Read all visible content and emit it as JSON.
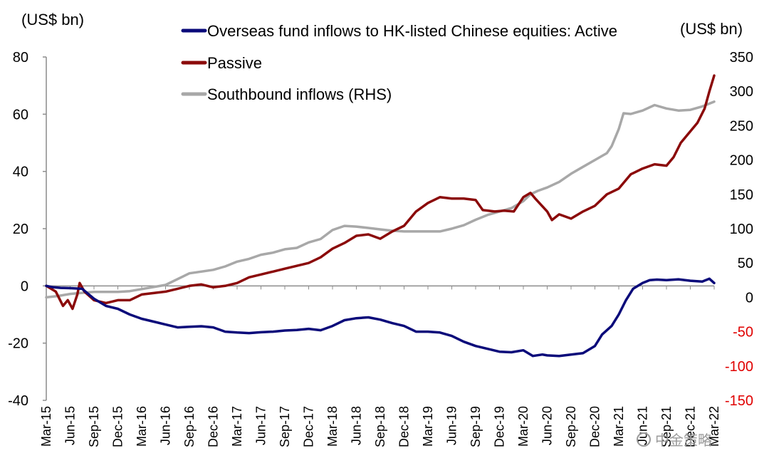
{
  "chart_data": {
    "type": "line",
    "left_unit": "(US$ bn)",
    "right_unit": "(US$ bn)",
    "left_axis": {
      "ylim": [
        -40,
        80
      ],
      "ticks": [
        -40,
        -20,
        0,
        20,
        40,
        60,
        80
      ]
    },
    "right_axis": {
      "ylim": [
        -150,
        350
      ],
      "ticks": [
        -150,
        -100,
        -50,
        0,
        50,
        100,
        150,
        200,
        250,
        300,
        350
      ]
    },
    "x_ticks": [
      "Mar-15",
      "Jun-15",
      "Sep-15",
      "Dec-15",
      "Mar-16",
      "Jun-16",
      "Sep-16",
      "Dec-16",
      "Mar-17",
      "Jun-17",
      "Sep-17",
      "Dec-17",
      "Mar-18",
      "Jun-18",
      "Sep-18",
      "Dec-18",
      "Mar-19",
      "Jun-19",
      "Sep-19",
      "Dec-19",
      "Mar-20",
      "Jun-20",
      "Sep-20",
      "Dec-20",
      "Mar-21",
      "Jun-21",
      "Sep-21",
      "Dec-21",
      "Mar-22"
    ],
    "x_range": [
      0,
      28
    ],
    "series": [
      {
        "name": "Overseas fund inflows to HK-listed Chinese equities: Active",
        "axis": "left",
        "color": "#0a0a7a",
        "points": [
          [
            0,
            0
          ],
          [
            0.3,
            -0.5
          ],
          [
            0.6,
            -0.7
          ],
          [
            1,
            -0.8
          ],
          [
            1.5,
            -1
          ],
          [
            2,
            -4.5
          ],
          [
            2.5,
            -7
          ],
          [
            3,
            -8
          ],
          [
            3.5,
            -10
          ],
          [
            4,
            -11.5
          ],
          [
            4.5,
            -12.5
          ],
          [
            5,
            -13.5
          ],
          [
            5.5,
            -14.5
          ],
          [
            6,
            -14.3
          ],
          [
            6.5,
            -14.1
          ],
          [
            7,
            -14.5
          ],
          [
            7.5,
            -16
          ],
          [
            8,
            -16.3
          ],
          [
            8.5,
            -16.5
          ],
          [
            9,
            -16.2
          ],
          [
            9.5,
            -16
          ],
          [
            10,
            -15.6
          ],
          [
            10.5,
            -15.4
          ],
          [
            11,
            -15
          ],
          [
            11.5,
            -15.5
          ],
          [
            12,
            -14
          ],
          [
            12.5,
            -12
          ],
          [
            13,
            -11.3
          ],
          [
            13.5,
            -11
          ],
          [
            14,
            -11.8
          ],
          [
            14.5,
            -13
          ],
          [
            15,
            -14
          ],
          [
            15.5,
            -16
          ],
          [
            16,
            -16
          ],
          [
            16.5,
            -16.3
          ],
          [
            17,
            -17.5
          ],
          [
            17.5,
            -19.5
          ],
          [
            18,
            -21
          ],
          [
            18.5,
            -22
          ],
          [
            19,
            -23
          ],
          [
            19.5,
            -23.2
          ],
          [
            20,
            -22.5
          ],
          [
            20.4,
            -24.5
          ],
          [
            20.8,
            -24
          ],
          [
            21,
            -24.3
          ],
          [
            21.5,
            -24.5
          ],
          [
            22,
            -24
          ],
          [
            22.5,
            -23.5
          ],
          [
            23,
            -21
          ],
          [
            23.3,
            -17
          ],
          [
            23.7,
            -14
          ],
          [
            24,
            -10
          ],
          [
            24.3,
            -5
          ],
          [
            24.6,
            -1
          ],
          [
            25,
            1
          ],
          [
            25.3,
            2
          ],
          [
            25.6,
            2.2
          ],
          [
            26,
            2
          ],
          [
            26.5,
            2.3
          ],
          [
            27,
            1.8
          ],
          [
            27.5,
            1.5
          ],
          [
            27.8,
            2.5
          ],
          [
            28,
            1
          ]
        ]
      },
      {
        "name": "Passive",
        "axis": "left",
        "color": "#8b0a0a",
        "points": [
          [
            0,
            0
          ],
          [
            0.4,
            -2
          ],
          [
            0.7,
            -7
          ],
          [
            0.9,
            -5
          ],
          [
            1.1,
            -8
          ],
          [
            1.3,
            -3
          ],
          [
            1.4,
            1
          ],
          [
            1.6,
            -2
          ],
          [
            2,
            -5
          ],
          [
            2.5,
            -6
          ],
          [
            3,
            -5
          ],
          [
            3.5,
            -5
          ],
          [
            4,
            -3
          ],
          [
            4.5,
            -2.5
          ],
          [
            5,
            -2
          ],
          [
            5.5,
            -1
          ],
          [
            6,
            0
          ],
          [
            6.5,
            0.5
          ],
          [
            7,
            -0.5
          ],
          [
            7.5,
            0
          ],
          [
            8,
            1
          ],
          [
            8.5,
            3
          ],
          [
            9,
            4
          ],
          [
            9.5,
            5
          ],
          [
            10,
            6
          ],
          [
            10.5,
            7
          ],
          [
            11,
            8
          ],
          [
            11.5,
            10
          ],
          [
            12,
            13
          ],
          [
            12.5,
            15
          ],
          [
            13,
            17.5
          ],
          [
            13.5,
            18
          ],
          [
            14,
            16.5
          ],
          [
            14.5,
            19
          ],
          [
            15,
            21
          ],
          [
            15.5,
            26
          ],
          [
            16,
            29
          ],
          [
            16.5,
            31
          ],
          [
            17,
            30.5
          ],
          [
            17.5,
            30.5
          ],
          [
            18,
            30
          ],
          [
            18.3,
            26.5
          ],
          [
            18.8,
            26
          ],
          [
            19.2,
            26.3
          ],
          [
            19.6,
            26
          ],
          [
            20,
            31
          ],
          [
            20.3,
            32.5
          ],
          [
            20.5,
            30.5
          ],
          [
            21,
            26
          ],
          [
            21.2,
            23
          ],
          [
            21.5,
            25
          ],
          [
            22,
            23.5
          ],
          [
            22.5,
            26
          ],
          [
            23,
            28
          ],
          [
            23.5,
            32
          ],
          [
            24,
            34
          ],
          [
            24.5,
            39
          ],
          [
            25,
            41
          ],
          [
            25.5,
            42.5
          ],
          [
            26,
            42
          ],
          [
            26.3,
            45
          ],
          [
            26.6,
            50
          ],
          [
            27,
            54
          ],
          [
            27.3,
            57
          ],
          [
            27.6,
            62
          ],
          [
            27.8,
            68
          ],
          [
            28,
            73.5
          ]
        ]
      },
      {
        "name": "Southbound inflows (RHS)",
        "axis": "right",
        "color": "#a8a8a8",
        "points": [
          [
            0,
            0
          ],
          [
            0.5,
            2
          ],
          [
            1,
            5
          ],
          [
            2,
            8
          ],
          [
            3,
            8
          ],
          [
            3.5,
            9
          ],
          [
            4,
            12
          ],
          [
            5,
            18
          ],
          [
            6,
            35
          ],
          [
            7,
            40
          ],
          [
            7.5,
            45
          ],
          [
            8,
            52
          ],
          [
            8.5,
            56
          ],
          [
            9,
            62
          ],
          [
            9.5,
            65
          ],
          [
            10,
            70
          ],
          [
            10.5,
            72
          ],
          [
            11,
            80
          ],
          [
            11.5,
            85
          ],
          [
            12,
            98
          ],
          [
            12.5,
            104
          ],
          [
            13,
            103
          ],
          [
            13.5,
            101
          ],
          [
            14,
            99
          ],
          [
            14.5,
            97
          ],
          [
            15,
            96
          ],
          [
            16,
            96
          ],
          [
            16.5,
            96
          ],
          [
            17,
            100
          ],
          [
            17.5,
            105
          ],
          [
            18,
            113
          ],
          [
            18.5,
            120
          ],
          [
            19,
            125
          ],
          [
            19.5,
            130
          ],
          [
            20,
            140
          ],
          [
            20.3,
            150
          ],
          [
            20.6,
            155
          ],
          [
            21,
            160
          ],
          [
            21.5,
            168
          ],
          [
            22,
            180
          ],
          [
            22.5,
            190
          ],
          [
            23,
            200
          ],
          [
            23.5,
            210
          ],
          [
            23.7,
            220
          ],
          [
            24,
            245
          ],
          [
            24.2,
            268
          ],
          [
            24.5,
            267
          ],
          [
            25,
            272
          ],
          [
            25.5,
            280
          ],
          [
            26,
            275
          ],
          [
            26.5,
            272
          ],
          [
            27,
            273
          ],
          [
            27.5,
            278
          ],
          [
            28,
            285
          ]
        ]
      }
    ],
    "legend_placement": "top-center",
    "grid": false
  },
  "watermark": "中金策略"
}
